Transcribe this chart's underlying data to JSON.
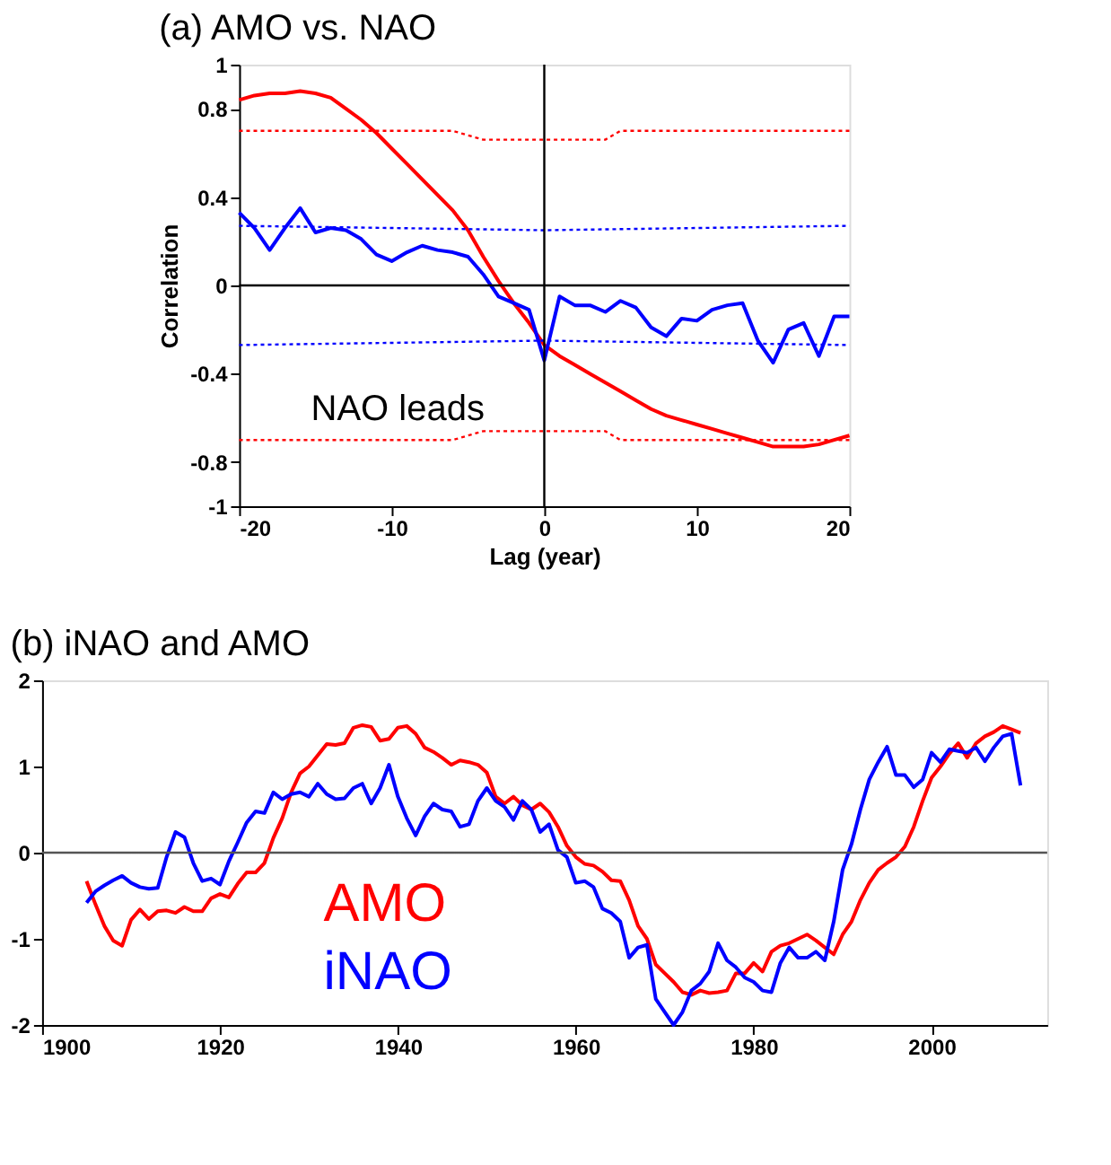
{
  "chart_data": [
    {
      "type": "line",
      "title": "(a)  AMO vs. NAO",
      "xlabel": "Lag (year)",
      "ylabel": "Correlation",
      "xlim": [
        -20,
        20
      ],
      "xticks": [
        -20,
        -10,
        0,
        10,
        20
      ],
      "ylim": [
        -1,
        1
      ],
      "yticks": [
        -1,
        -0.8,
        -0.4,
        0,
        0.4,
        0.8,
        1
      ],
      "grid": false,
      "legend": false,
      "ref_lines": [
        {
          "axis": "y",
          "value": 0,
          "color": "#000000"
        },
        {
          "axis": "x",
          "value": 0,
          "color": "#000000"
        }
      ],
      "annotations": [
        "NAO leads"
      ],
      "series": [
        {
          "color": "#ff0000",
          "line_style": "solid",
          "x": [
            -20,
            -19,
            -18,
            -17,
            -16,
            -15,
            -14,
            -13,
            -12,
            -11,
            -10,
            -9,
            -8,
            -7,
            -6,
            -5,
            -4,
            -3,
            -2,
            -1,
            0,
            1,
            2,
            3,
            4,
            5,
            6,
            7,
            8,
            9,
            10,
            11,
            12,
            13,
            14,
            15,
            16,
            17,
            18,
            19,
            20
          ],
          "values": [
            0.84,
            0.86,
            0.87,
            0.87,
            0.88,
            0.87,
            0.85,
            0.8,
            0.75,
            0.69,
            0.62,
            0.55,
            0.48,
            0.41,
            0.34,
            0.25,
            0.13,
            0.02,
            -0.08,
            -0.17,
            -0.27,
            -0.32,
            -0.36,
            -0.4,
            -0.44,
            -0.48,
            -0.52,
            -0.56,
            -0.59,
            -0.61,
            -0.63,
            -0.65,
            -0.67,
            -0.69,
            -0.71,
            -0.73,
            -0.73,
            -0.73,
            -0.72,
            -0.7,
            -0.68
          ]
        },
        {
          "color": "#0000ff",
          "line_style": "solid",
          "x": [
            -20,
            -19,
            -18,
            -17,
            -16,
            -15,
            -14,
            -13,
            -12,
            -11,
            -10,
            -9,
            -8,
            -7,
            -6,
            -5,
            -4,
            -3,
            -2,
            -1,
            0,
            1,
            2,
            3,
            4,
            5,
            6,
            7,
            8,
            9,
            10,
            11,
            12,
            13,
            14,
            15,
            16,
            17,
            18,
            19,
            20
          ],
          "values": [
            0.33,
            0.26,
            0.16,
            0.26,
            0.35,
            0.24,
            0.26,
            0.25,
            0.21,
            0.14,
            0.11,
            0.15,
            0.18,
            0.16,
            0.15,
            0.13,
            0.05,
            -0.05,
            -0.08,
            -0.11,
            -0.34,
            -0.05,
            -0.09,
            -0.09,
            -0.12,
            -0.07,
            -0.1,
            -0.19,
            -0.23,
            -0.15,
            -0.16,
            -0.11,
            -0.09,
            -0.08,
            -0.25,
            -0.35,
            -0.2,
            -0.17,
            -0.32,
            -0.14,
            -0.14
          ]
        },
        {
          "color": "#ff0000",
          "line_style": "dotted",
          "x": [
            -20,
            -6,
            -4,
            4,
            5,
            20
          ],
          "values": [
            0.7,
            0.7,
            0.66,
            0.66,
            0.7,
            0.7
          ]
        },
        {
          "color": "#ff0000",
          "line_style": "dotted",
          "x": [
            -20,
            -6,
            -4,
            4,
            5,
            20
          ],
          "values": [
            -0.7,
            -0.7,
            -0.66,
            -0.66,
            -0.7,
            -0.7
          ]
        },
        {
          "color": "#0000ff",
          "line_style": "dotted",
          "x": [
            -20,
            0,
            20
          ],
          "values": [
            0.27,
            0.25,
            0.27
          ]
        },
        {
          "color": "#0000ff",
          "line_style": "dotted",
          "x": [
            -20,
            0,
            20
          ],
          "values": [
            -0.27,
            -0.25,
            -0.27
          ]
        }
      ]
    },
    {
      "type": "line",
      "title": "(b) iNAO and AMO",
      "xlim": [
        1900,
        2013
      ],
      "xticks": [
        1900,
        1920,
        1940,
        1960,
        1980,
        2000
      ],
      "ylim": [
        -2,
        2
      ],
      "yticks": [
        -2,
        -1,
        0,
        1,
        2
      ],
      "grid": false,
      "legend": "bottom left",
      "ref_lines": [
        {
          "axis": "y",
          "value": 0,
          "color": "#555555"
        }
      ],
      "series": [
        {
          "name": "AMO",
          "color": "#ff0000",
          "line_style": "solid",
          "x": [
            1905,
            1906,
            1907,
            1908,
            1909,
            1910,
            1911,
            1912,
            1913,
            1914,
            1915,
            1916,
            1917,
            1918,
            1919,
            1920,
            1921,
            1922,
            1923,
            1924,
            1925,
            1926,
            1927,
            1928,
            1929,
            1930,
            1931,
            1932,
            1933,
            1934,
            1935,
            1936,
            1937,
            1938,
            1939,
            1940,
            1941,
            1942,
            1943,
            1944,
            1945,
            1946,
            1947,
            1948,
            1949,
            1950,
            1951,
            1952,
            1953,
            1954,
            1955,
            1956,
            1957,
            1958,
            1959,
            1960,
            1961,
            1962,
            1963,
            1964,
            1965,
            1966,
            1967,
            1968,
            1969,
            1970,
            1971,
            1972,
            1973,
            1974,
            1975,
            1976,
            1977,
            1978,
            1979,
            1980,
            1981,
            1982,
            1983,
            1984,
            1985,
            1986,
            1987,
            1988,
            1989,
            1990,
            1991,
            1992,
            1993,
            1994,
            1995,
            1996,
            1997,
            1998,
            1999,
            2000,
            2001,
            2002,
            2003,
            2004,
            2005,
            2006,
            2007,
            2008,
            2009,
            2010
          ],
          "values": [
            -0.33,
            -0.6,
            -0.85,
            -1.02,
            -1.08,
            -0.78,
            -0.66,
            -0.77,
            -0.68,
            -0.67,
            -0.7,
            -0.63,
            -0.68,
            -0.68,
            -0.53,
            -0.48,
            -0.52,
            -0.36,
            -0.23,
            -0.23,
            -0.12,
            0.17,
            0.4,
            0.7,
            0.92,
            1.0,
            1.13,
            1.26,
            1.25,
            1.27,
            1.45,
            1.48,
            1.46,
            1.3,
            1.32,
            1.45,
            1.47,
            1.38,
            1.22,
            1.17,
            1.1,
            1.02,
            1.07,
            1.05,
            1.02,
            0.93,
            0.65,
            0.57,
            0.65,
            0.55,
            0.5,
            0.57,
            0.47,
            0.3,
            0.08,
            -0.05,
            -0.13,
            -0.15,
            -0.22,
            -0.32,
            -0.33,
            -0.55,
            -0.85,
            -1.0,
            -1.3,
            -1.4,
            -1.5,
            -1.62,
            -1.65,
            -1.6,
            -1.63,
            -1.62,
            -1.6,
            -1.4,
            -1.4,
            -1.28,
            -1.38,
            -1.15,
            -1.08,
            -1.05,
            -1.0,
            -0.95,
            -1.02,
            -1.1,
            -1.18,
            -0.95,
            -0.8,
            -0.55,
            -0.35,
            -0.2,
            -0.12,
            -0.05,
            0.07,
            0.3,
            0.6,
            0.87,
            1.0,
            1.15,
            1.27,
            1.1,
            1.27,
            1.35,
            1.4,
            1.47,
            1.43,
            1.39
          ]
        },
        {
          "name": "iNAO",
          "color": "#0000ff",
          "line_style": "solid",
          "x": [
            1905,
            1906,
            1907,
            1908,
            1909,
            1910,
            1911,
            1912,
            1913,
            1914,
            1915,
            1916,
            1917,
            1918,
            1919,
            1920,
            1921,
            1922,
            1923,
            1924,
            1925,
            1926,
            1927,
            1928,
            1929,
            1930,
            1931,
            1932,
            1933,
            1934,
            1935,
            1936,
            1937,
            1938,
            1939,
            1940,
            1941,
            1942,
            1943,
            1944,
            1945,
            1946,
            1947,
            1948,
            1949,
            1950,
            1951,
            1952,
            1953,
            1954,
            1955,
            1956,
            1957,
            1958,
            1959,
            1960,
            1961,
            1962,
            1963,
            1964,
            1965,
            1966,
            1967,
            1968,
            1969,
            1970,
            1971,
            1972,
            1973,
            1974,
            1975,
            1976,
            1977,
            1978,
            1979,
            1980,
            1981,
            1982,
            1983,
            1984,
            1985,
            1986,
            1987,
            1988,
            1989,
            1990,
            1991,
            1992,
            1993,
            1994,
            1995,
            1996,
            1997,
            1998,
            1999,
            2000,
            2001,
            2002,
            2003,
            2004,
            2005,
            2006,
            2007,
            2008,
            2009,
            2010
          ],
          "values": [
            -0.58,
            -0.45,
            -0.38,
            -0.32,
            -0.27,
            -0.35,
            -0.4,
            -0.42,
            -0.41,
            -0.05,
            0.24,
            0.18,
            -0.12,
            -0.33,
            -0.3,
            -0.37,
            -0.1,
            0.12,
            0.35,
            0.48,
            0.46,
            0.7,
            0.62,
            0.68,
            0.7,
            0.65,
            0.8,
            0.68,
            0.62,
            0.63,
            0.75,
            0.8,
            0.57,
            0.75,
            1.02,
            0.65,
            0.4,
            0.2,
            0.42,
            0.57,
            0.5,
            0.48,
            0.3,
            0.33,
            0.6,
            0.75,
            0.6,
            0.53,
            0.38,
            0.6,
            0.5,
            0.24,
            0.33,
            0.03,
            -0.05,
            -0.35,
            -0.33,
            -0.4,
            -0.65,
            -0.7,
            -0.8,
            -1.22,
            -1.1,
            -1.07,
            -1.7,
            -1.85,
            -2.0,
            -1.85,
            -1.6,
            -1.52,
            -1.38,
            -1.05,
            -1.25,
            -1.33,
            -1.45,
            -1.5,
            -1.6,
            -1.62,
            -1.28,
            -1.1,
            -1.22,
            -1.22,
            -1.15,
            -1.25,
            -0.8,
            -0.2,
            0.1,
            0.5,
            0.85,
            1.05,
            1.23,
            0.9,
            0.9,
            0.76,
            0.85,
            1.16,
            1.05,
            1.2,
            1.18,
            1.16,
            1.22,
            1.06,
            1.22,
            1.35,
            1.38,
            0.78
          ]
        }
      ]
    }
  ]
}
